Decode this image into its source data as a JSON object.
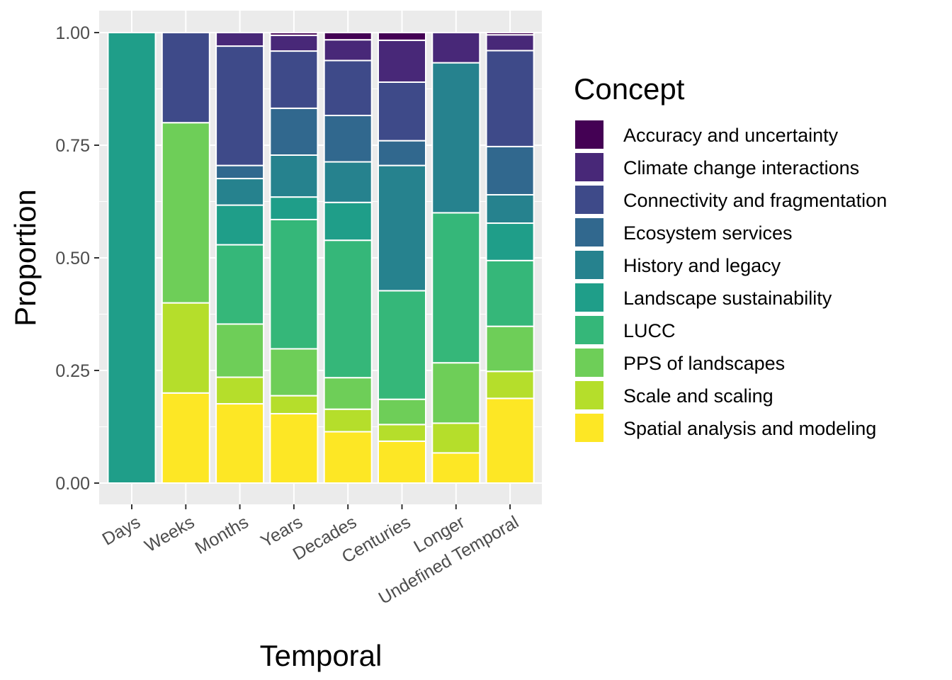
{
  "chart_data": {
    "type": "bar",
    "stacked": true,
    "xlabel": "Temporal",
    "ylabel": "Proportion",
    "ylim": [
      0,
      1
    ],
    "y_ticks": [
      "0.00",
      "0.25",
      "0.50",
      "0.75",
      "1.00"
    ],
    "y_tick_values": [
      0,
      0.25,
      0.5,
      0.75,
      1.0
    ],
    "categories": [
      "Days",
      "Weeks",
      "Months",
      "Years",
      "Decades",
      "Centuries",
      "Longer",
      "Undefined Temporal"
    ],
    "legend": {
      "title": "Concept",
      "position": "right"
    },
    "background": "#EBEBEB",
    "grid": true,
    "series": [
      {
        "name": "Spatial analysis and modeling",
        "color": "#FDE725",
        "values": [
          0,
          0.2,
          0.176,
          0.154,
          0.114,
          0.093,
          0.067,
          0.188
        ]
      },
      {
        "name": "Scale and scaling",
        "color": "#B5DE2B",
        "values": [
          0,
          0.2,
          0.059,
          0.04,
          0.05,
          0.037,
          0.066,
          0.06
        ]
      },
      {
        "name": "PPS of landscapes",
        "color": "#6ECE58",
        "values": [
          0,
          0.4,
          0.118,
          0.104,
          0.07,
          0.056,
          0.134,
          0.1
        ]
      },
      {
        "name": "LUCC",
        "color": "#35B779",
        "values": [
          0,
          0,
          0.176,
          0.287,
          0.305,
          0.241,
          0.333,
          0.146
        ]
      },
      {
        "name": "Landscape sustainability",
        "color": "#1F9E89",
        "values": [
          1.0,
          0,
          0.088,
          0.05,
          0.084,
          0,
          0,
          0.083
        ]
      },
      {
        "name": "History and legacy",
        "color": "#26828E",
        "values": [
          0,
          0,
          0.059,
          0.093,
          0.09,
          0.278,
          0.333,
          0.063
        ]
      },
      {
        "name": "Ecosystem services",
        "color": "#31688E",
        "values": [
          0,
          0,
          0.029,
          0.104,
          0.103,
          0.055,
          0,
          0.107
        ]
      },
      {
        "name": "Connectivity and fragmentation",
        "color": "#3E4A89",
        "values": [
          0,
          0.2,
          0.265,
          0.127,
          0.122,
          0.13,
          0,
          0.213
        ]
      },
      {
        "name": "Climate change interactions",
        "color": "#482878",
        "values": [
          0,
          0,
          0.03,
          0.035,
          0.046,
          0.093,
          0.067,
          0.035
        ]
      },
      {
        "name": "Accuracy and uncertainty",
        "color": "#440154",
        "values": [
          0,
          0,
          0,
          0.006,
          0.016,
          0.017,
          0,
          0.005
        ]
      }
    ]
  }
}
